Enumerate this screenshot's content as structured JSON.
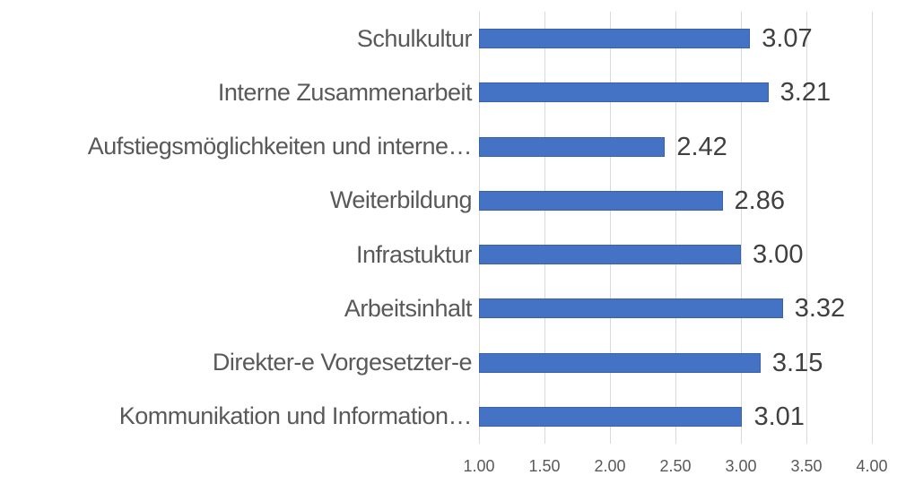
{
  "chart_data": {
    "type": "bar",
    "orientation": "horizontal",
    "title": "",
    "xlabel": "",
    "ylabel": "",
    "categories": [
      "Schulkultur",
      "Interne Zusammenarbeit",
      "Aufstiegsmöglichkeiten und interne…",
      "Weiterbildung",
      "Infrastuktur",
      "Arbeitsinhalt",
      "Direkter-e Vorgesetzter-e",
      "Kommunikation und Information…"
    ],
    "values": [
      3.07,
      3.21,
      2.42,
      2.86,
      3.0,
      3.32,
      3.15,
      3.01
    ],
    "value_labels": [
      "3.07",
      "3.21",
      "2.42",
      "2.86",
      "3.00",
      "3.32",
      "3.15",
      "3.01"
    ],
    "x_ticks": [
      "1.00",
      "1.50",
      "2.00",
      "2.50",
      "3.00",
      "3.50",
      "4.00"
    ],
    "xlim": [
      1.0,
      4.0
    ],
    "grid": "vertical-only",
    "legend": null,
    "colors": {
      "bar_fill": "#4472c4",
      "bar_border": "#3a62a9",
      "gridline": "#d9d9d9",
      "category_text": "#595959",
      "value_text": "#404040",
      "axis_text": "#595959",
      "background": "#ffffff"
    }
  }
}
